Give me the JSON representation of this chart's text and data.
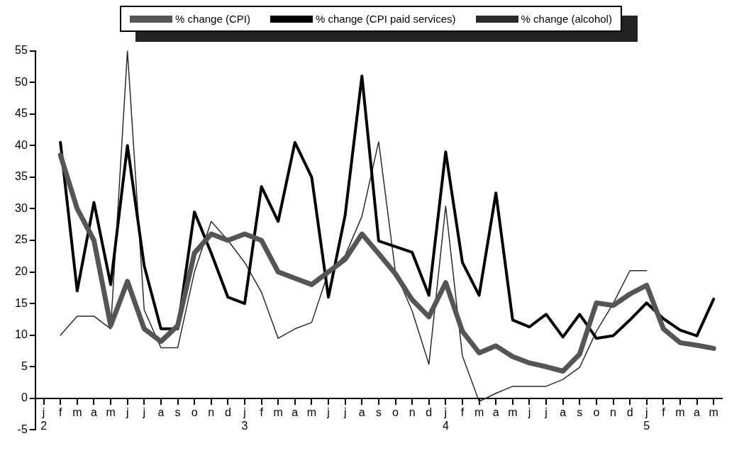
{
  "chart_data": {
    "type": "line",
    "categories": [
      "j\n2",
      "f",
      "m",
      "a",
      "m",
      "j",
      "j",
      "a",
      "s",
      "o",
      "n",
      "d",
      "j\n3",
      "f",
      "m",
      "a",
      "m",
      "j",
      "j",
      "a",
      "s",
      "o",
      "n",
      "d",
      "j\n4",
      "f",
      "m",
      "a",
      "m",
      "j",
      "j",
      "a",
      "s",
      "o",
      "n",
      "d",
      "j\n5",
      "f",
      "m",
      "a",
      "m"
    ],
    "series": [
      {
        "name": "% change (CPI)",
        "color": "#555555",
        "values": [
          null,
          38.5,
          30,
          25,
          11.5,
          18.5,
          11,
          9,
          11.5,
          23,
          26,
          25,
          26,
          25,
          20,
          19,
          18,
          20,
          22,
          26,
          22.9,
          19.7,
          15.6,
          12.9,
          18.3,
          10.6,
          7.2,
          8.3,
          6.6,
          5.6,
          5,
          4.3,
          7,
          15.1,
          14.7,
          16.5,
          17.9,
          11,
          8.8,
          8.4,
          7.9
        ]
      },
      {
        "name": "% change (CPI paid services)",
        "color": "#000000",
        "values": [
          null,
          40.5,
          17,
          31,
          18,
          40,
          21,
          11,
          11,
          29.5,
          23,
          16,
          15,
          33.5,
          28,
          40.5,
          35,
          16,
          29,
          51,
          24.9,
          24,
          23.1,
          16.3,
          39,
          21.5,
          16.3,
          32.5,
          12.4,
          11.3,
          13.3,
          9.7,
          13.3,
          9.5,
          9.9,
          12.4,
          15.1,
          12.6,
          10.8,
          9.9,
          15.7
        ]
      },
      {
        "name": "% change (alcohol)",
        "color": "#2b2b2b",
        "values": [
          null,
          10,
          13,
          13,
          11,
          55,
          14,
          8,
          8,
          20,
          28,
          25,
          21.5,
          16.8,
          9.5,
          11,
          12,
          20,
          22.6,
          28.8,
          40.6,
          20,
          13.8,
          5.4,
          30.4,
          6.7,
          -0.5,
          0.8,
          1.9,
          1.9,
          1.9,
          3,
          4.9,
          10.6,
          15,
          20.2,
          20.2,
          null,
          null,
          null,
          null
        ]
      }
    ],
    "ylim": [
      -5,
      55
    ],
    "yticks": [
      -5,
      0,
      5,
      10,
      15,
      20,
      25,
      30,
      35,
      40,
      45,
      50,
      55
    ],
    "grid": false,
    "legend": "top",
    "marker": "none",
    "line_style": "solid"
  }
}
